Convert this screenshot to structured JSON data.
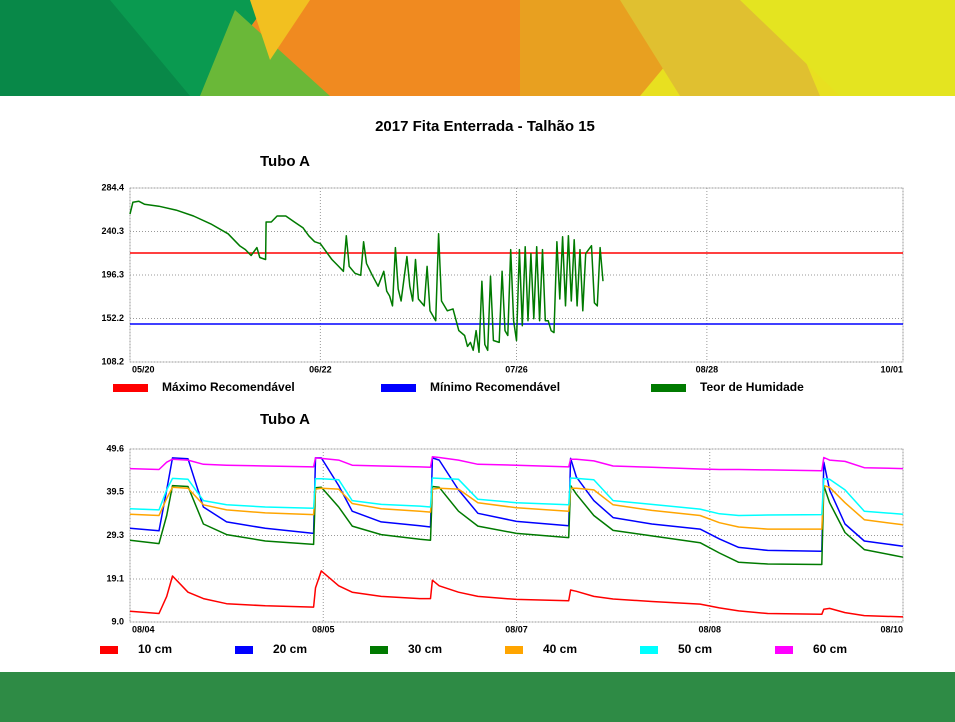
{
  "title": "2017 Fita Enterrada - Talhão 15",
  "chart_data": [
    {
      "type": "line",
      "title": "Tubo A",
      "grid": true,
      "xlim": [
        0,
        134
      ],
      "xticks": [
        {
          "value": 0,
          "label": "05/20"
        },
        {
          "value": 33,
          "label": "06/22"
        },
        {
          "value": 67,
          "label": "07/26"
        },
        {
          "value": 100,
          "label": "08/28"
        },
        {
          "value": 134,
          "label": "10/01"
        }
      ],
      "ylim": [
        108.2,
        284.4
      ],
      "yticks": [
        108.2,
        152.2,
        196.3,
        240.3,
        284.4
      ],
      "series": [
        {
          "name": "Máximo Recomendável",
          "color": "#ff0000",
          "x": [
            0,
            134
          ],
          "values": [
            218.6,
            218.6
          ]
        },
        {
          "name": "Mínimo Recomendável",
          "color": "#0000ff",
          "x": [
            0,
            134
          ],
          "values": [
            146.7,
            146.7
          ]
        },
        {
          "name": "Teor de Humidade",
          "color": "#007a00",
          "x": [
            0,
            0.5,
            1.5,
            2.5,
            5,
            8,
            11,
            14,
            17,
            19,
            20,
            21,
            22,
            22.5,
            23.5,
            23.6,
            24.5,
            25.5,
            27,
            28.5,
            30,
            31,
            32,
            33,
            34,
            35,
            36,
            37,
            37.5,
            38,
            39,
            40,
            40.5,
            41,
            42,
            43,
            44,
            44.5,
            45,
            45.5,
            46,
            46.5,
            47,
            48,
            48.5,
            49,
            49.5,
            50,
            51,
            51.5,
            52,
            53,
            53.5,
            54,
            55,
            56,
            57,
            58,
            58.5,
            59,
            59.5,
            60,
            60.5,
            61,
            61.5,
            62,
            62.5,
            63,
            64,
            64.5,
            65,
            65.5,
            66,
            66.5,
            67,
            67.5,
            68,
            68.5,
            69,
            69.5,
            70,
            70.5,
            71,
            71.5,
            72,
            72.5,
            73,
            73.5,
            74,
            74.5,
            75,
            75.5,
            76,
            76.5,
            77,
            77.5,
            78,
            78.5,
            79,
            80,
            80.5,
            81,
            81.5,
            82
          ],
          "values": [
            258,
            270,
            271,
            268,
            266,
            262,
            256,
            248,
            238,
            226,
            222,
            216,
            224,
            214,
            212,
            250,
            250,
            256,
            256,
            250,
            244,
            236,
            230,
            228,
            220,
            212,
            206,
            200,
            236,
            205,
            198,
            196,
            230,
            208,
            196,
            185,
            200,
            180,
            175,
            165,
            224,
            182,
            170,
            215,
            185,
            170,
            212,
            172,
            165,
            205,
            160,
            150,
            238,
            170,
            160,
            162,
            140,
            135,
            124,
            128,
            120,
            140,
            118,
            190,
            126,
            120,
            195,
            130,
            128,
            200,
            140,
            135,
            222,
            150,
            130,
            222,
            145,
            225,
            150,
            218,
            152,
            225,
            150,
            222,
            150,
            150,
            140,
            138,
            230,
            172,
            235,
            165,
            236,
            170,
            232,
            165,
            222,
            160,
            218,
            226,
            168,
            165,
            224,
            190
          ]
        }
      ]
    },
    {
      "type": "line",
      "title": "Tubo A",
      "grid": true,
      "xlim": [
        0,
        4
      ],
      "xticks": [
        {
          "value": 0,
          "label": "08/04"
        },
        {
          "value": 1,
          "label": "08/05"
        },
        {
          "value": 2,
          "label": "08/07"
        },
        {
          "value": 3,
          "label": "08/08"
        },
        {
          "value": 4,
          "label": "08/10"
        }
      ],
      "ylim": [
        9,
        49.6
      ],
      "yticks": [
        {
          "value": 9,
          "label": "9.0"
        },
        19.1,
        29.3,
        39.5,
        49.6
      ],
      "x": [
        0,
        0.15,
        0.19,
        0.22,
        0.3,
        0.38,
        0.5,
        0.7,
        0.95,
        0.96,
        0.99,
        1.08,
        1.15,
        1.3,
        1.5,
        1.555,
        1.565,
        1.6,
        1.7,
        1.8,
        2.0,
        2.27,
        2.28,
        2.31,
        2.4,
        2.5,
        2.7,
        2.95,
        3.05,
        3.15,
        3.3,
        3.58,
        3.59,
        3.62,
        3.7,
        3.8,
        4.0
      ],
      "series": [
        {
          "name": "10 cm",
          "color": "#ff0000",
          "values": [
            11.5,
            11,
            15,
            19.8,
            16,
            14.5,
            13.3,
            12.8,
            12.5,
            17,
            21,
            17.5,
            16,
            15,
            14.5,
            14.5,
            18.8,
            17.5,
            16,
            15,
            14.3,
            14,
            16.5,
            16.2,
            15,
            14.4,
            13.8,
            13.2,
            12.3,
            11.6,
            11,
            10.8,
            12,
            12.2,
            11.2,
            10.5,
            10.2
          ]
        },
        {
          "name": "20 cm",
          "color": "#0000ff",
          "values": [
            31,
            30.4,
            40,
            47.5,
            47.3,
            36,
            32.5,
            31,
            29.8,
            47.5,
            47.5,
            41,
            35,
            32.5,
            31.6,
            31.3,
            47.5,
            47,
            40,
            34.5,
            32.6,
            31.6,
            47.4,
            43,
            37.5,
            33.5,
            32,
            30.8,
            28.5,
            26.5,
            25.8,
            25.6,
            46.5,
            40,
            32,
            28,
            26.8
          ]
        },
        {
          "name": "30 cm",
          "color": "#007a00",
          "values": [
            28.2,
            27.4,
            34,
            41,
            40.8,
            32,
            29.5,
            28,
            27.2,
            40.5,
            40.6,
            36,
            31.5,
            29.5,
            28.4,
            28.2,
            40.8,
            40.6,
            35,
            31.5,
            29.8,
            28.8,
            41,
            39,
            34,
            30.5,
            29.2,
            27.6,
            25.2,
            23,
            22.6,
            22.5,
            41,
            37,
            30,
            26,
            24.2
          ]
        },
        {
          "name": "40 cm",
          "color": "#ffa500",
          "values": [
            34.3,
            34,
            38,
            40.6,
            40.4,
            36.5,
            35.3,
            34.6,
            34.2,
            40.2,
            40.4,
            40.2,
            36.8,
            35.6,
            35,
            34.8,
            40.2,
            40.4,
            40.2,
            37,
            35.8,
            35,
            40.4,
            40.4,
            40,
            36.5,
            35.2,
            34,
            32.3,
            31.3,
            30.8,
            30.8,
            41,
            40.6,
            37,
            33,
            31.8
          ]
        },
        {
          "name": "50 cm",
          "color": "#00ffff",
          "values": [
            35.6,
            35.3,
            40,
            42.7,
            42.5,
            37.5,
            36.5,
            36,
            35.7,
            42.6,
            42.6,
            42.4,
            37.5,
            36.6,
            36.2,
            36,
            42.8,
            42.7,
            42.5,
            37.8,
            37,
            36.5,
            42.8,
            42.7,
            42.4,
            37.5,
            36.6,
            35.5,
            34.4,
            34,
            34.1,
            34.2,
            42.6,
            42.5,
            40,
            35,
            34.3
          ]
        },
        {
          "name": "60 cm",
          "color": "#ff00ff",
          "values": [
            45,
            44.8,
            46.5,
            47.2,
            47,
            46,
            45.8,
            45.6,
            45.4,
            47.5,
            47.4,
            47,
            45.8,
            45.6,
            45.4,
            45.3,
            47.8,
            47.6,
            47,
            46,
            45.8,
            45.4,
            47.2,
            47.2,
            46.8,
            45.6,
            45.3,
            44.9,
            44.8,
            44.8,
            44.7,
            44.5,
            47.6,
            47,
            46.7,
            45.2,
            45
          ]
        }
      ]
    }
  ]
}
